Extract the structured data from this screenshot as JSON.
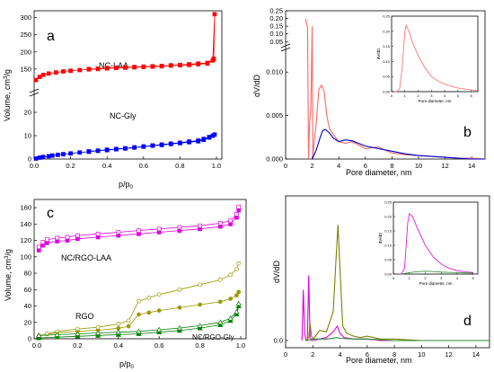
{
  "chart_data": [
    {
      "panel": "a",
      "type": "line",
      "xlabel": "p/p0",
      "ylabel": "Volume, cm3/g",
      "xlim": [
        0.0,
        1.0
      ],
      "x_ticks": [
        "0.0",
        "0.2",
        "0.4",
        "0.6",
        "0.8",
        "1.0"
      ],
      "y_ticks_top": [
        "150",
        "200",
        "250",
        "300"
      ],
      "y_ticks_bottom": [
        "0",
        "10",
        "20"
      ],
      "axis_break": true,
      "colors": {
        "NC-LAA": "#ff0000",
        "NC-Gly": "#0000ff"
      },
      "series": [
        {
          "name": "NC-LAA",
          "x": [
            0.01,
            0.03,
            0.05,
            0.08,
            0.12,
            0.16,
            0.2,
            0.25,
            0.3,
            0.35,
            0.4,
            0.45,
            0.5,
            0.55,
            0.6,
            0.65,
            0.7,
            0.75,
            0.8,
            0.85,
            0.9,
            0.95,
            0.98,
            0.99,
            0.985,
            0.95,
            0.9,
            0.85,
            0.8,
            0.75,
            0.7,
            0.65,
            0.6,
            0.55,
            0.5,
            0.45,
            0.4,
            0.35,
            0.3
          ],
          "y": [
            118,
            127,
            133,
            137,
            140,
            143,
            145,
            147,
            149,
            150,
            152,
            153,
            154,
            155,
            156,
            157,
            158,
            160,
            161,
            162,
            164,
            166,
            175,
            310,
            180,
            168,
            166,
            164,
            162,
            161,
            159,
            158,
            157,
            156,
            155,
            154,
            153,
            151,
            150
          ]
        },
        {
          "name": "NC-Gly",
          "x": [
            0.01,
            0.03,
            0.05,
            0.08,
            0.1,
            0.13,
            0.16,
            0.2,
            0.25,
            0.3,
            0.35,
            0.4,
            0.45,
            0.5,
            0.55,
            0.6,
            0.65,
            0.7,
            0.75,
            0.8,
            0.85,
            0.9,
            0.93,
            0.96,
            0.98,
            0.99,
            0.96,
            0.93,
            0.9,
            0.85,
            0.8,
            0.75,
            0.7,
            0.65,
            0.6,
            0.55,
            0.5,
            0.45,
            0.4,
            0.35,
            0.3
          ],
          "y": [
            0.2,
            0.6,
            0.9,
            1.2,
            1.5,
            1.8,
            2.1,
            2.4,
            2.8,
            3.1,
            3.5,
            3.8,
            4.2,
            4.5,
            4.9,
            5.3,
            5.7,
            6.0,
            6.4,
            6.8,
            7.2,
            7.6,
            8.2,
            9.2,
            10.0,
            10.5,
            9.4,
            8.6,
            7.9,
            7.5,
            7.0,
            6.6,
            6.2,
            5.8,
            5.4,
            5.0,
            4.6,
            4.3,
            4.0,
            3.6,
            3.3
          ]
        }
      ]
    },
    {
      "panel": "b",
      "type": "line",
      "xlabel": "Pore diameter, nm",
      "ylabel": "dV/dD",
      "xlim": [
        0,
        15
      ],
      "x_ticks": [
        "0",
        "2",
        "4",
        "6",
        "8",
        "10",
        "12",
        "14"
      ],
      "y_ticks_top": [
        "0.05",
        "0.10",
        "0.15",
        "0.20",
        "0.25"
      ],
      "y_ticks_bottom": [
        "0.000",
        "0.005",
        "0.010"
      ],
      "axis_break": true,
      "series": [
        {
          "name": "NC-LAA",
          "color": "#ff6666",
          "x": [
            1.5,
            1.65,
            1.72,
            1.8,
            1.9,
            2.0,
            2.05,
            2.15,
            2.3,
            2.5,
            2.7,
            2.9,
            3.1,
            3.3,
            3.6,
            4.0,
            4.5,
            5.0,
            5.5,
            6.0,
            6.5,
            7.0,
            7.5,
            8.0,
            9.0,
            10.0,
            11.0,
            12.0,
            13.0,
            14.0,
            15.0
          ],
          "y": [
            0.2,
            0.14,
            0.015,
            0.004,
            0.006,
            0.15,
            0.013,
            0.002,
            0.004,
            0.008,
            0.0085,
            0.0078,
            0.005,
            0.0035,
            0.0028,
            0.002,
            0.0018,
            0.002,
            0.0016,
            0.0012,
            0.0013,
            0.0014,
            0.001,
            0.0007,
            0.0005,
            0.0004,
            0.0003,
            0.0002,
            0.0001,
            0.0001,
            0.0
          ]
        },
        {
          "name": "NC-Gly",
          "color": "#0000cc",
          "x": [
            2.0,
            2.3,
            2.6,
            2.8,
            3.0,
            3.3,
            3.6,
            4.0,
            4.5,
            5.0,
            5.5,
            6.0,
            7.0,
            8.0,
            9.0,
            10.0,
            11.0,
            12.0,
            13.0,
            14.0,
            15.0
          ],
          "y": [
            0.0,
            0.001,
            0.0025,
            0.0033,
            0.0034,
            0.003,
            0.0024,
            0.002,
            0.0022,
            0.0021,
            0.0018,
            0.0015,
            0.0012,
            0.0009,
            0.0006,
            0.0004,
            0.0003,
            0.0002,
            0.0001,
            0.0,
            0.0
          ]
        }
      ],
      "inset": {
        "xlabel": "Pore diameter, nm",
        "ylabel": "dV/dD",
        "x_ticks": [
          "0",
          "1",
          "2",
          "3",
          "4",
          "5",
          "6"
        ],
        "y_ticks": [
          "0.00",
          "0.05",
          "0.10",
          "0.15",
          "0.20",
          "0.25"
        ],
        "xlim": [
          0,
          6.5
        ],
        "ylim": [
          0,
          0.25
        ],
        "series": [
          {
            "color": "#ff6666",
            "x": [
              0.2,
              0.4,
              0.6,
              0.8,
              1.0,
              1.1,
              1.3,
              1.6,
              2.0,
              2.5,
              3.0,
              3.5,
              4.0,
              4.5,
              5.0,
              5.5,
              6.0,
              6.5
            ],
            "y": [
              0,
              0,
              0.01,
              0.08,
              0.2,
              0.22,
              0.2,
              0.16,
              0.12,
              0.08,
              0.05,
              0.035,
              0.025,
              0.018,
              0.012,
              0.009,
              0.006,
              0.004
            ]
          }
        ]
      }
    },
    {
      "panel": "c",
      "type": "line",
      "xlabel": "p/p0",
      "ylabel": "Volume, cm3/g",
      "xlim": [
        0.0,
        1.0
      ],
      "ylim": [
        0,
        160
      ],
      "x_ticks": [
        "0.0",
        "0.2",
        "0.4",
        "0.6",
        "0.8",
        "1.0"
      ],
      "y_ticks": [
        "0",
        "20",
        "40",
        "60",
        "80",
        "100",
        "120",
        "140",
        "160"
      ],
      "series": [
        {
          "name": "NC/RGO-LAA",
          "color": "#e000e0",
          "x": [
            0.01,
            0.03,
            0.05,
            0.1,
            0.15,
            0.2,
            0.3,
            0.4,
            0.5,
            0.6,
            0.7,
            0.8,
            0.9,
            0.95,
            0.98,
            0.99
          ],
          "y": [
            108,
            114,
            117,
            119,
            120,
            122,
            124,
            126,
            128,
            130,
            132,
            134,
            137,
            140,
            148,
            157
          ]
        },
        {
          "name": "RGO",
          "color": "#9a9a00",
          "x": [
            0.01,
            0.05,
            0.1,
            0.2,
            0.3,
            0.4,
            0.45,
            0.5,
            0.55,
            0.6,
            0.7,
            0.8,
            0.9,
            0.95,
            0.98,
            0.99
          ],
          "y": [
            3,
            6,
            9,
            12,
            14,
            18,
            22,
            46,
            50,
            54,
            60,
            66,
            72,
            78,
            85,
            92
          ]
        },
        {
          "name": "NC/RGO-Gly",
          "color": "#008000",
          "x": [
            0.01,
            0.1,
            0.2,
            0.3,
            0.4,
            0.5,
            0.6,
            0.7,
            0.8,
            0.9,
            0.95,
            0.98,
            0.99
          ],
          "y": [
            1,
            2,
            3,
            4,
            5,
            6,
            8,
            10,
            13,
            17,
            22,
            30,
            40
          ]
        }
      ]
    },
    {
      "panel": "d",
      "type": "line",
      "xlabel": "Pore diameter, nm",
      "ylabel": "dV/dD",
      "xlim": [
        0,
        15
      ],
      "ylim": [
        -0.05,
        1.0
      ],
      "x_ticks": [
        "0",
        "2",
        "4",
        "6",
        "8",
        "10",
        "12",
        "14"
      ],
      "y_ticks": [
        "0.0"
      ],
      "series": [
        {
          "name": "NC/RGO-LAA",
          "color": "#e000e0",
          "x": [
            1.2,
            1.3,
            1.4,
            1.5,
            1.6,
            1.7,
            1.8,
            1.9,
            2.0,
            2.5,
            3.0,
            3.5,
            3.8,
            4.0,
            4.3,
            5.0,
            6.0,
            7.0,
            8.0,
            10.0,
            12.0,
            15.0
          ],
          "y": [
            0.0,
            0.35,
            0.05,
            0.0,
            0.0,
            0.45,
            0.02,
            0.0,
            0.0,
            0.01,
            0.02,
            0.06,
            0.1,
            0.05,
            0.02,
            0.01,
            0.01,
            0.0,
            0.0,
            0.0,
            0.0,
            0.0
          ]
        },
        {
          "name": "RGO",
          "color": "#808000",
          "x": [
            1.5,
            1.7,
            1.8,
            1.9,
            2.0,
            2.2,
            2.5,
            3.0,
            3.5,
            3.7,
            3.85,
            4.0,
            4.2,
            4.5,
            5.0,
            5.5,
            6.0,
            7.0,
            8.0,
            10.0,
            12.0,
            15.0
          ],
          "y": [
            0.0,
            0.02,
            0.12,
            0.03,
            0.01,
            0.03,
            0.07,
            0.06,
            0.2,
            0.55,
            0.8,
            0.5,
            0.1,
            0.05,
            0.03,
            0.02,
            0.03,
            0.01,
            0.01,
            0.0,
            0.0,
            0.0
          ]
        },
        {
          "name": "NC/RGO-Gly",
          "color": "#2e8b2e",
          "x": [
            1.5,
            2.0,
            2.5,
            3.0,
            3.8,
            4.0,
            5.0,
            6.0,
            8.0,
            10.0,
            15.0
          ],
          "y": [
            0.0,
            0.01,
            0.01,
            0.01,
            0.02,
            0.015,
            0.01,
            0.01,
            0.0,
            0.0,
            0.0
          ]
        }
      ],
      "inset": {
        "xlabel": "Pore diameter, nm",
        "ylabel": "dV/dD",
        "x_ticks": [
          "0",
          "1",
          "2",
          "3",
          "4",
          "5"
        ],
        "y_ticks": [
          "0.00",
          "0.05",
          "0.10",
          "0.15",
          "0.20",
          "0.25"
        ],
        "xlim": [
          0,
          5.3
        ],
        "ylim": [
          0,
          0.25
        ],
        "series": [
          {
            "color": "#e000e0",
            "x": [
              0.3,
              0.5,
              0.7,
              0.8,
              0.9,
              1.0,
              1.2,
              1.5,
              2.0,
              2.5,
              3.0,
              3.5,
              4.0,
              4.5,
              5.0
            ],
            "y": [
              0,
              0,
              0.02,
              0.1,
              0.18,
              0.21,
              0.2,
              0.16,
              0.1,
              0.06,
              0.035,
              0.02,
              0.012,
              0.008,
              0.005
            ]
          },
          {
            "color": "#2e8b2e",
            "x": [
              0.5,
              1.0,
              1.5,
              2.0,
              2.5,
              3.0,
              3.5,
              4.0,
              4.5,
              5.0
            ],
            "y": [
              0,
              0.005,
              0.008,
              0.01,
              0.009,
              0.007,
              0.006,
              0.005,
              0.004,
              0.003
            ]
          }
        ]
      }
    }
  ],
  "labels": {
    "panel_a": "a",
    "panel_b": "b",
    "panel_c": "c",
    "panel_d": "d",
    "nc_laa": "NC-LAA",
    "nc_gly": "NC-Gly",
    "nc_rgo_laa": "NC/RGO-LAA",
    "rgo": "RGO",
    "nc_rgo_gly": "NC/RGO-Gly",
    "p_main": "p/p",
    "p_sub": "0",
    "vol_main": "Volume, cm",
    "vol_sup": "3",
    "vol_tail": "/g",
    "dvdd": "dV/dD",
    "pore": "Pore diameter, nm"
  }
}
